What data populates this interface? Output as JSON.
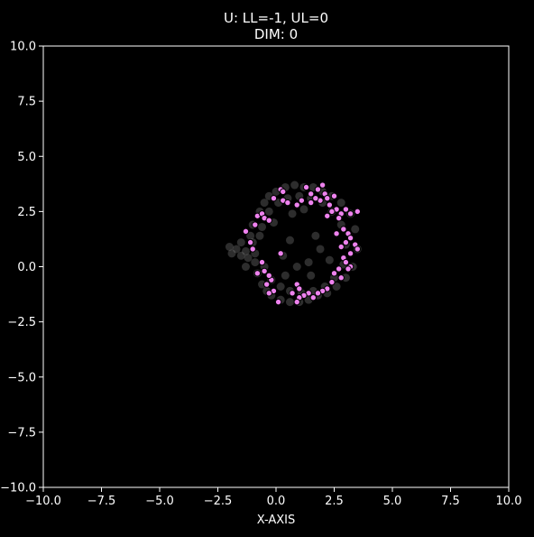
{
  "chart_data": {
    "type": "scatter",
    "title_line1": "U: LL=-1, UL=0",
    "title_line2": "DIM: 0",
    "xlabel": "X-AXIS",
    "ylabel": "",
    "xlim": [
      -10,
      10
    ],
    "ylim": [
      -10,
      10
    ],
    "grid": false,
    "xticks": [
      -10.0,
      -7.5,
      -5.0,
      -2.5,
      0.0,
      2.5,
      5.0,
      7.5,
      10.0
    ],
    "yticks": [
      -10.0,
      -7.5,
      -5.0,
      -2.5,
      0.0,
      2.5,
      5.0,
      7.5,
      10.0
    ],
    "xtick_labels": [
      "−10.0",
      "−7.5",
      "−5.0",
      "−2.5",
      "0.0",
      "2.5",
      "5.0",
      "7.5",
      "10.0"
    ],
    "ytick_labels": [
      "−10.0",
      "−7.5",
      "−5.0",
      "−2.5",
      "0.0",
      "2.5",
      "5.0",
      "7.5",
      "10.0"
    ],
    "colors": {
      "background": "#000000",
      "axes": "#ffffff",
      "background_points": "#808080",
      "highlight_points": "#ee82ee",
      "highlight_edge": "#000000"
    },
    "series": [
      {
        "style": "gray-translucent",
        "points": [
          [
            -2.0,
            0.9
          ],
          [
            -1.9,
            0.6
          ],
          [
            -1.7,
            0.8
          ],
          [
            -1.5,
            0.5
          ],
          [
            -1.3,
            0.7
          ],
          [
            -1.2,
            0.4
          ],
          [
            -1.1,
            1.4
          ],
          [
            -1.0,
            1.9
          ],
          [
            -0.9,
            0.2
          ],
          [
            -0.8,
            -0.3
          ],
          [
            -0.7,
            2.5
          ],
          [
            -0.6,
            -0.8
          ],
          [
            -0.5,
            2.9
          ],
          [
            -0.4,
            -1.1
          ],
          [
            -0.3,
            3.2
          ],
          [
            -0.2,
            -1.3
          ],
          [
            0.0,
            3.4
          ],
          [
            0.2,
            -1.5
          ],
          [
            0.4,
            3.6
          ],
          [
            0.6,
            -1.6
          ],
          [
            0.8,
            3.7
          ],
          [
            1.0,
            -1.6
          ],
          [
            1.2,
            3.6
          ],
          [
            1.4,
            -1.5
          ],
          [
            1.6,
            3.6
          ],
          [
            1.8,
            -1.3
          ],
          [
            2.0,
            3.4
          ],
          [
            2.2,
            -1.2
          ],
          [
            2.4,
            3.2
          ],
          [
            2.6,
            -0.9
          ],
          [
            2.8,
            2.9
          ],
          [
            3.0,
            -0.5
          ],
          [
            3.2,
            2.4
          ],
          [
            3.3,
            0.0
          ],
          [
            3.4,
            1.7
          ],
          [
            3.5,
            0.8
          ],
          [
            -1.0,
            1.1
          ],
          [
            -0.9,
            0.6
          ],
          [
            -0.6,
            1.8
          ],
          [
            -0.5,
            0.0
          ],
          [
            -0.3,
            2.5
          ],
          [
            -0.2,
            -0.6
          ],
          [
            0.1,
            2.9
          ],
          [
            0.2,
            -0.9
          ],
          [
            0.5,
            3.1
          ],
          [
            0.6,
            -1.1
          ],
          [
            1.0,
            3.2
          ],
          [
            1.1,
            -1.2
          ],
          [
            1.5,
            3.1
          ],
          [
            1.6,
            -1.1
          ],
          [
            2.0,
            2.9
          ],
          [
            2.1,
            -0.9
          ],
          [
            2.4,
            2.5
          ],
          [
            2.5,
            -0.5
          ],
          [
            2.8,
            1.9
          ],
          [
            2.9,
            0.1
          ],
          [
            3.0,
            1.0
          ],
          [
            0.3,
            0.5
          ],
          [
            0.6,
            1.2
          ],
          [
            1.4,
            0.2
          ],
          [
            0.9,
            0.0
          ],
          [
            1.7,
            1.4
          ],
          [
            1.5,
            -0.4
          ],
          [
            -1.5,
            1.1
          ],
          [
            -1.3,
            0.0
          ],
          [
            -0.1,
            2.0
          ],
          [
            0.4,
            -0.4
          ],
          [
            1.9,
            0.8
          ],
          [
            -0.7,
            1.4
          ],
          [
            2.3,
            0.3
          ],
          [
            0.7,
            2.4
          ],
          [
            1.2,
            2.6
          ]
        ]
      },
      {
        "style": "violet-outlined",
        "points": [
          [
            0.2,
            3.5
          ],
          [
            0.3,
            3.4
          ],
          [
            1.3,
            3.6
          ],
          [
            1.5,
            3.3
          ],
          [
            1.8,
            3.5
          ],
          [
            2.0,
            3.7
          ],
          [
            2.1,
            3.3
          ],
          [
            1.9,
            3.0
          ],
          [
            2.2,
            3.1
          ],
          [
            2.5,
            3.2
          ],
          [
            2.3,
            2.8
          ],
          [
            2.6,
            2.6
          ],
          [
            2.8,
            2.4
          ],
          [
            3.0,
            2.6
          ],
          [
            3.2,
            2.4
          ],
          [
            3.5,
            2.5
          ],
          [
            2.4,
            2.5
          ],
          [
            2.7,
            2.2
          ],
          [
            2.9,
            1.7
          ],
          [
            3.1,
            1.5
          ],
          [
            3.2,
            1.3
          ],
          [
            3.0,
            1.1
          ],
          [
            3.4,
            1.0
          ],
          [
            3.5,
            0.8
          ],
          [
            3.2,
            0.6
          ],
          [
            2.9,
            0.4
          ],
          [
            3.0,
            0.2
          ],
          [
            3.2,
            0.0
          ],
          [
            2.7,
            -0.1
          ],
          [
            2.5,
            -0.3
          ],
          [
            2.8,
            -0.5
          ],
          [
            2.4,
            -0.7
          ],
          [
            2.2,
            -1.0
          ],
          [
            2.0,
            -1.1
          ],
          [
            1.8,
            -1.2
          ],
          [
            1.4,
            -1.2
          ],
          [
            1.2,
            -1.3
          ],
          [
            1.0,
            -1.4
          ],
          [
            0.9,
            -1.6
          ],
          [
            0.7,
            -1.2
          ],
          [
            0.1,
            -1.6
          ],
          [
            -0.1,
            -1.1
          ],
          [
            -0.3,
            -1.2
          ],
          [
            -0.4,
            -0.8
          ],
          [
            -0.2,
            -0.6
          ],
          [
            -0.3,
            -0.4
          ],
          [
            -0.5,
            -0.2
          ],
          [
            -0.8,
            -0.3
          ],
          [
            -0.6,
            0.2
          ],
          [
            -1.0,
            0.8
          ],
          [
            -1.1,
            1.1
          ],
          [
            -1.3,
            1.6
          ],
          [
            -0.9,
            1.9
          ],
          [
            -0.8,
            2.3
          ],
          [
            -0.6,
            2.4
          ],
          [
            -0.5,
            2.2
          ],
          [
            -0.3,
            2.1
          ],
          [
            -0.1,
            3.1
          ],
          [
            0.3,
            3.0
          ],
          [
            0.5,
            2.9
          ],
          [
            0.9,
            2.8
          ],
          [
            1.1,
            3.0
          ],
          [
            1.5,
            2.9
          ],
          [
            1.7,
            3.1
          ],
          [
            2.2,
            2.3
          ],
          [
            2.6,
            1.5
          ],
          [
            2.8,
            0.9
          ],
          [
            3.1,
            -0.1
          ],
          [
            0.9,
            -0.8
          ],
          [
            1.6,
            -1.4
          ],
          [
            0.2,
            0.6
          ],
          [
            1.0,
            -1.0
          ]
        ]
      }
    ]
  }
}
